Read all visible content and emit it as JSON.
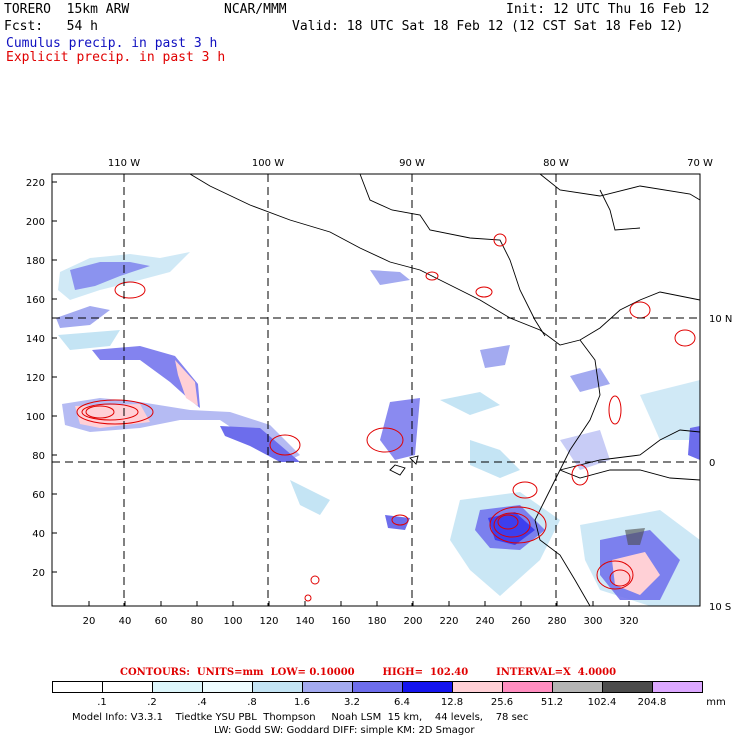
{
  "header": {
    "model": "TORERO  15km ARW",
    "org": "NCAR/MMM",
    "init": "Init: 12 UTC Thu 16 Feb 12",
    "fcst": "Fcst:   54 h",
    "valid": "Valid: 18 UTC Sat 18 Feb 12 (12 CST Sat 18 Feb 12)",
    "cumulus": "Cumulus precip. in past 3 h",
    "explicit": "Explicit precip. in past 3 h"
  },
  "axes": {
    "top_labels": [
      "110 W",
      "100 W",
      "90 W",
      "80 W",
      "70 W"
    ],
    "right_labels": [
      "10 N",
      "0",
      "10 S"
    ],
    "left_ticks": [
      "220",
      "200",
      "180",
      "160",
      "140",
      "120",
      "100",
      "80",
      "60",
      "40",
      "20"
    ],
    "bottom_ticks": [
      "20",
      "40",
      "60",
      "80",
      "100",
      "120",
      "140",
      "160",
      "180",
      "200",
      "220",
      "240",
      "260",
      "280",
      "300",
      "320"
    ]
  },
  "colorbar": {
    "labels": [
      ".1",
      ".2",
      ".4",
      ".8",
      "1.6",
      "3.2",
      "6.4",
      "12.8",
      "25.6",
      "51.2",
      "102.4",
      "204.8"
    ],
    "unit": "mm",
    "colors": [
      "#ffffff",
      "#ffffff",
      "#ddf6fb",
      "#eefcff",
      "#c4e4f4",
      "#a3aaf0",
      "#6d6dec",
      "#1414ee",
      "#ffd0d6",
      "#ff8ec0",
      "#b4b4b4",
      "#4c4c4c",
      "#dca8ff"
    ]
  },
  "contours_line": "CONTOURS:  UNITS=mm  LOW= 0.10000        HIGH=  102.40        INTERVAL=X  4.0000",
  "footer": {
    "line1": "Model Info: V3.3.1    Tiedtke YSU PBL  Thompson     Noah LSM  15 km,    44 levels,    78 sec",
    "line2": "LW: Godd SW: Goddard DIFF: simple KM: 2D Smagor"
  }
}
